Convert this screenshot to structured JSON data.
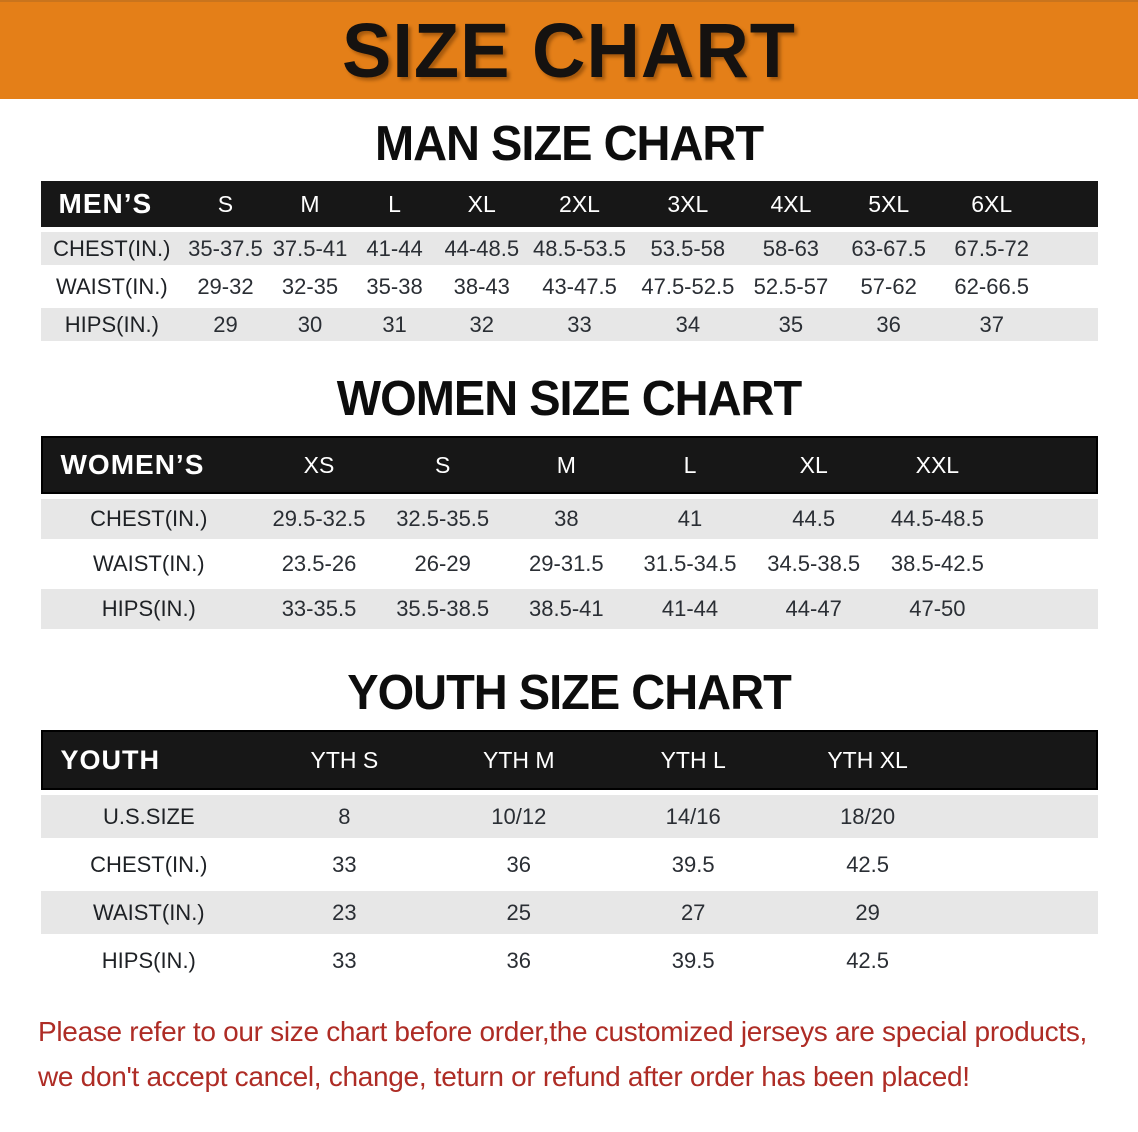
{
  "banner": {
    "title": "SIZE CHART"
  },
  "colors": {
    "banner_bg": "#E47F18",
    "header_bar_bg": "#171717",
    "row_stripe": "#E7E7E7",
    "disclaimer_text": "#AE2C25"
  },
  "men": {
    "heading": "MAN SIZE CHART",
    "corner": "MEN’S",
    "columns": [
      "S",
      "M",
      "L",
      "XL",
      "2XL",
      "3XL",
      "4XL",
      "5XL",
      "6XL"
    ],
    "rows": [
      {
        "label": "CHEST(IN.)",
        "values": [
          "35-37.5",
          "37.5-41",
          "41-44",
          "44-48.5",
          "48.5-53.5",
          "53.5-58",
          "58-63",
          "63-67.5",
          "67.5-72"
        ]
      },
      {
        "label": "WAIST(IN.)",
        "values": [
          "29-32",
          "32-35",
          "35-38",
          "38-43",
          "43-47.5",
          "47.5-52.5",
          "52.5-57",
          "57-62",
          "62-66.5"
        ]
      },
      {
        "label": "HIPS(IN.)",
        "values": [
          "29",
          "30",
          "31",
          "32",
          "33",
          "34",
          "35",
          "36",
          "37"
        ]
      }
    ]
  },
  "women": {
    "heading": "WOMEN SIZE CHART",
    "corner": "WOMEN’S",
    "columns": [
      "XS",
      "S",
      "M",
      "L",
      "XL",
      "XXL"
    ],
    "rows": [
      {
        "label": "CHEST(IN.)",
        "values": [
          "29.5-32.5",
          "32.5-35.5",
          "38",
          "41",
          "44.5",
          "44.5-48.5"
        ]
      },
      {
        "label": "WAIST(IN.)",
        "values": [
          "23.5-26",
          "26-29",
          "29-31.5",
          "31.5-34.5",
          "34.5-38.5",
          "38.5-42.5"
        ]
      },
      {
        "label": "HIPS(IN.)",
        "values": [
          "33-35.5",
          "35.5-38.5",
          "38.5-41",
          "41-44",
          "44-47",
          "47-50"
        ]
      }
    ]
  },
  "youth": {
    "heading": "YOUTH SIZE CHART",
    "corner": "YOUTH",
    "columns": [
      "YTH S",
      "YTH M",
      "YTH L",
      "YTH XL"
    ],
    "rows": [
      {
        "label": "U.S.SIZE",
        "values": [
          "8",
          "10/12",
          "14/16",
          "18/20"
        ]
      },
      {
        "label": "CHEST(IN.)",
        "values": [
          "33",
          "36",
          "39.5",
          "42.5"
        ]
      },
      {
        "label": "WAIST(IN.)",
        "values": [
          "23",
          "25",
          "27",
          "29"
        ]
      },
      {
        "label": "HIPS(IN.)",
        "values": [
          "33",
          "36",
          "39.5",
          "42.5"
        ]
      }
    ]
  },
  "disclaimer": {
    "line1": "Please refer to our size chart before order,the customized jerseys are special products,",
    "line2": "we don't accept cancel, change, teturn or refund after order has been placed!"
  }
}
